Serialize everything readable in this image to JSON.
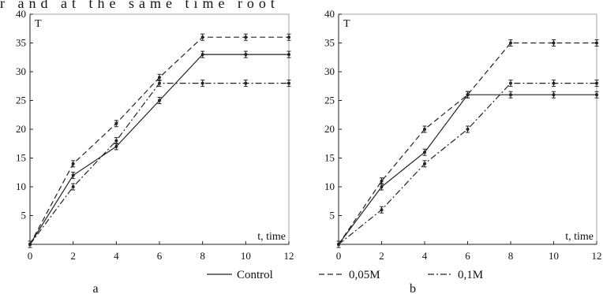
{
  "page_text": "r and at the same time root",
  "chart_data": [
    {
      "type": "line",
      "panel_label": "a",
      "ylabel": "T",
      "xlabel": "t, time",
      "xlim": [
        0,
        12
      ],
      "ylim": [
        0,
        40
      ],
      "xticks": [
        0,
        2,
        4,
        6,
        8,
        10,
        12
      ],
      "yticks": [
        5,
        10,
        15,
        20,
        25,
        30,
        35,
        40
      ],
      "grid": false,
      "x": [
        0,
        2,
        4,
        6,
        8,
        10,
        12
      ],
      "series": [
        {
          "name": "Control",
          "style": "solid",
          "values": [
            0,
            12,
            17,
            25,
            33,
            33,
            33
          ]
        },
        {
          "name": "0,05M",
          "style": "dashed",
          "values": [
            0,
            14,
            21,
            29,
            36,
            36,
            36
          ]
        },
        {
          "name": "0,1M",
          "style": "dashdot",
          "values": [
            0,
            10,
            18,
            28,
            28,
            28,
            28
          ]
        }
      ]
    },
    {
      "type": "line",
      "panel_label": "b",
      "ylabel": "T",
      "xlabel": "t, time",
      "xlim": [
        0,
        12
      ],
      "ylim": [
        0,
        40
      ],
      "xticks": [
        0,
        2,
        4,
        6,
        8,
        10,
        12
      ],
      "yticks": [
        5,
        10,
        15,
        20,
        25,
        30,
        35,
        40
      ],
      "grid": false,
      "x": [
        0,
        2,
        4,
        6,
        8,
        10,
        12
      ],
      "series": [
        {
          "name": "Control",
          "style": "solid",
          "values": [
            0,
            10,
            16,
            26,
            26,
            26,
            26
          ]
        },
        {
          "name": "0,05M",
          "style": "dashed",
          "values": [
            0,
            11,
            20,
            26,
            35,
            35,
            35
          ]
        },
        {
          "name": "0,1M",
          "style": "dashdot",
          "values": [
            0,
            6,
            14,
            20,
            28,
            28,
            28
          ]
        }
      ]
    }
  ],
  "legend": {
    "placement": "bottom-center",
    "items": [
      {
        "label": "Control",
        "style": "solid"
      },
      {
        "label": "0,05M",
        "style": "dashed"
      },
      {
        "label": "0,1M",
        "style": "dashdot"
      }
    ]
  }
}
